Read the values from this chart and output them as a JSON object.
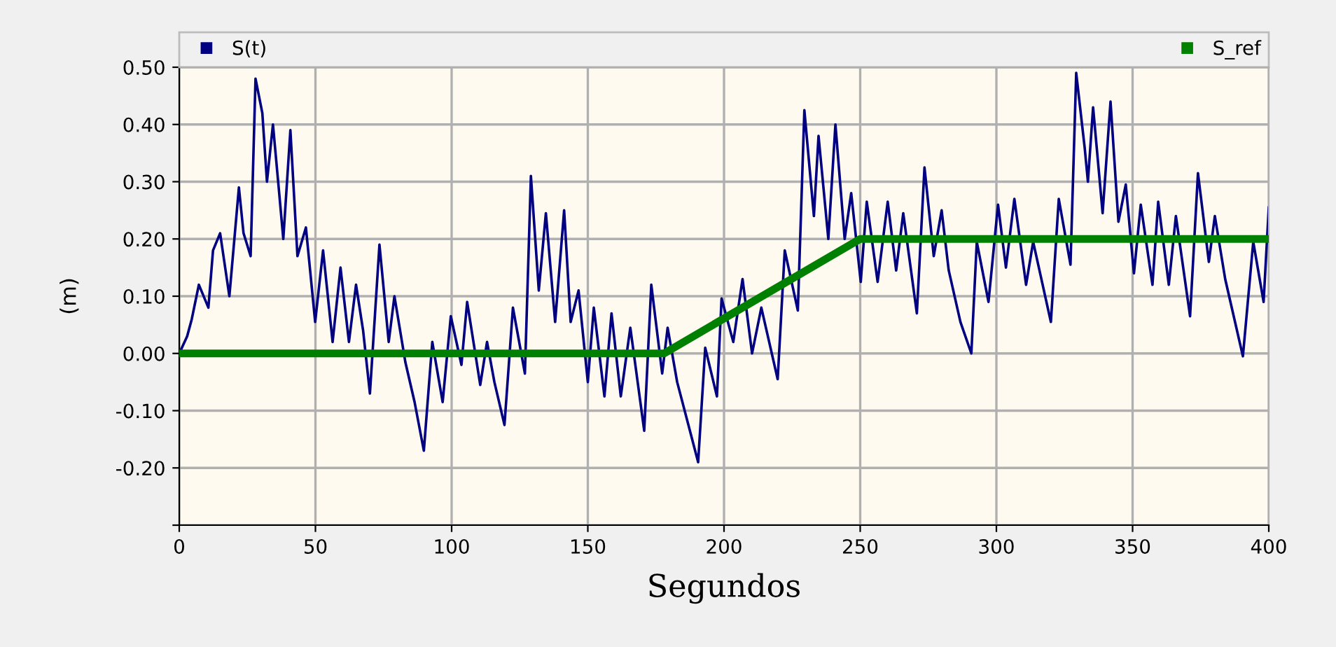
{
  "chart_data": {
    "type": "line",
    "xlabel": "Segundos",
    "ylabel": "(m)",
    "legend": "top",
    "grid": true,
    "xlim": [
      0,
      400
    ],
    "xticks": [
      0,
      50,
      100,
      150,
      200,
      250,
      300,
      350,
      400
    ],
    "ylim": [
      -0.3,
      0.5
    ],
    "yticks": [
      {
        "value": -0.3,
        "label": null
      },
      {
        "value": -0.2,
        "label": "-0.20"
      },
      {
        "value": -0.1,
        "label": "-0.10"
      },
      {
        "value": 0,
        "label": "0.00"
      },
      {
        "value": 0.1,
        "label": "0.10"
      },
      {
        "value": 0.2,
        "label": "0.20"
      },
      {
        "value": 0.3,
        "label": "0.30"
      },
      {
        "value": 0.4,
        "label": "0.40"
      },
      {
        "value": 0.5,
        "label": "0.50"
      }
    ],
    "series": [
      {
        "name": "S(t)",
        "color": "#000080",
        "x": [
          0,
          2.9,
          4.6,
          7.2,
          10.7,
          12.4,
          15,
          18.4,
          21.9,
          23.6,
          26.2,
          28,
          30.5,
          32.2,
          34.4,
          36.5,
          38.2,
          40.8,
          43.4,
          46.5,
          49.9,
          52.8,
          56.3,
          59.2,
          62.3,
          64.9,
          67.5,
          70,
          73.5,
          76.9,
          79,
          83,
          86.4,
          89.8,
          92.9,
          96.7,
          99.7,
          103.6,
          105.7,
          110.5,
          113,
          115.7,
          119.4,
          122.5,
          126.9,
          129.1,
          132,
          134.6,
          138,
          141.3,
          143.7,
          146.6,
          150,
          152.2,
          156.1,
          158.7,
          162.1,
          165.6,
          170.7,
          173.3,
          177.3,
          179.3,
          182.8,
          190.5,
          193.1,
          197.4,
          199.1,
          203.4,
          206.8,
          210.3,
          213.7,
          219.7,
          222.3,
          227.1,
          229.5,
          233,
          234.7,
          238.3,
          240.9,
          244.3,
          246.7,
          250.2,
          252.4,
          256.4,
          260.1,
          263.2,
          265.8,
          270.8,
          273.6,
          277,
          279.9,
          282.5,
          286.8,
          290.8,
          292.8,
          297.1,
          300.6,
          303.5,
          306.6,
          310.9,
          313.5,
          320,
          322.9,
          327.2,
          329.3,
          332.4,
          333.6,
          335.5,
          339,
          341.9,
          344.8,
          347.5,
          350.5,
          353,
          357.3,
          359.4,
          363.3,
          365.9,
          371.1,
          374,
          378,
          380.2,
          384,
          390.5,
          394.3,
          398.1,
          400
        ],
        "values": [
          0,
          0.03,
          0.06,
          0.12,
          0.08,
          0.18,
          0.21,
          0.1,
          0.29,
          0.21,
          0.17,
          0.48,
          0.42,
          0.3,
          0.4,
          0.29,
          0.2,
          0.39,
          0.17,
          0.22,
          0.055,
          0.18,
          0.02,
          0.15,
          0.02,
          0.12,
          0.04,
          -0.07,
          0.19,
          0.02,
          0.1,
          -0.015,
          -0.085,
          -0.17,
          0.02,
          -0.085,
          0.065,
          -0.02,
          0.09,
          -0.055,
          0.02,
          -0.05,
          -0.125,
          0.08,
          -0.035,
          0.31,
          0.11,
          0.245,
          0.055,
          0.25,
          0.055,
          0.11,
          -0.05,
          0.08,
          -0.075,
          0.07,
          -0.075,
          0.045,
          -0.135,
          0.12,
          -0.035,
          0.045,
          -0.05,
          -0.19,
          0.01,
          -0.075,
          0.096,
          0.02,
          0.13,
          0.0,
          0.08,
          -0.045,
          0.18,
          0.075,
          0.425,
          0.24,
          0.38,
          0.2,
          0.4,
          0.2,
          0.28,
          0.125,
          0.265,
          0.125,
          0.265,
          0.145,
          0.245,
          0.07,
          0.325,
          0.17,
          0.25,
          0.145,
          0.055,
          0.0,
          0.195,
          0.09,
          0.26,
          0.15,
          0.27,
          0.12,
          0.195,
          0.055,
          0.27,
          0.155,
          0.49,
          0.36,
          0.3,
          0.43,
          0.245,
          0.44,
          0.23,
          0.295,
          0.14,
          0.26,
          0.12,
          0.265,
          0.12,
          0.24,
          0.065,
          0.315,
          0.16,
          0.24,
          0.13,
          -0.005,
          0.195,
          0.09,
          0.255
        ]
      },
      {
        "name": "S_ref",
        "color": "#008000",
        "x": [
          0,
          178,
          250,
          400
        ],
        "values": [
          0,
          0,
          0.2,
          0.2
        ]
      }
    ]
  }
}
